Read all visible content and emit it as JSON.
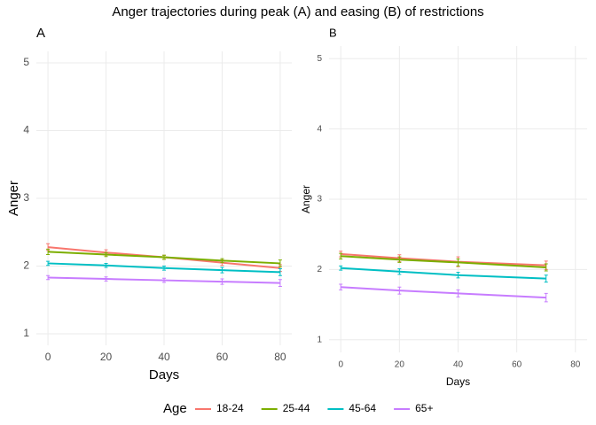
{
  "title": "Anger trajectories during peak (A) and easing (B) of restrictions",
  "legend": {
    "title": "Age",
    "position": "bottom"
  },
  "chart_data": [
    {
      "type": "line",
      "title": "A",
      "x_label": "Days",
      "y_label": "Anger",
      "x": [
        0,
        20,
        40,
        60,
        80
      ],
      "xlim": [
        -4,
        84
      ],
      "ylim": [
        0.83,
        5.17
      ],
      "xticks": [
        0,
        20,
        40,
        60,
        80
      ],
      "yticks": [
        1,
        2,
        3,
        4,
        5
      ],
      "grid": true,
      "series": [
        {
          "name": "18-24",
          "color": "#F8766D",
          "values": [
            2.28,
            2.2,
            2.13,
            2.05,
            1.97
          ],
          "errors": [
            0.05,
            0.04,
            0.03,
            0.04,
            0.05
          ]
        },
        {
          "name": "25-44",
          "color": "#7CAE00",
          "values": [
            2.21,
            2.17,
            2.13,
            2.08,
            2.04
          ],
          "errors": [
            0.04,
            0.03,
            0.03,
            0.03,
            0.05
          ]
        },
        {
          "name": "45-64",
          "color": "#00BFC4",
          "values": [
            2.04,
            2.01,
            1.97,
            1.94,
            1.91
          ],
          "errors": [
            0.03,
            0.03,
            0.03,
            0.04,
            0.05
          ]
        },
        {
          "name": "65+",
          "color": "#C77CFF",
          "values": [
            1.83,
            1.81,
            1.79,
            1.77,
            1.75
          ],
          "errors": [
            0.03,
            0.03,
            0.03,
            0.04,
            0.05
          ]
        }
      ]
    },
    {
      "type": "line",
      "title": "B",
      "x_label": "Days",
      "y_label": "Anger",
      "x": [
        0,
        20,
        40,
        70
      ],
      "xlim": [
        -4,
        84
      ],
      "ylim": [
        0.82,
        5.18
      ],
      "xticks": [
        0,
        20,
        40,
        60,
        80
      ],
      "yticks": [
        1,
        2,
        3,
        4,
        5
      ],
      "grid": true,
      "series": [
        {
          "name": "18-24",
          "color": "#F8766D",
          "values": [
            2.22,
            2.16,
            2.11,
            2.06
          ],
          "errors": [
            0.04,
            0.05,
            0.07,
            0.06
          ]
        },
        {
          "name": "25-44",
          "color": "#7CAE00",
          "values": [
            2.19,
            2.14,
            2.1,
            2.03
          ],
          "errors": [
            0.04,
            0.04,
            0.05,
            0.05
          ]
        },
        {
          "name": "45-64",
          "color": "#00BFC4",
          "values": [
            2.02,
            1.97,
            1.92,
            1.87
          ],
          "errors": [
            0.03,
            0.04,
            0.04,
            0.05
          ]
        },
        {
          "name": "65+",
          "color": "#C77CFF",
          "values": [
            1.75,
            1.7,
            1.66,
            1.6
          ],
          "errors": [
            0.04,
            0.05,
            0.05,
            0.06
          ]
        }
      ]
    }
  ]
}
